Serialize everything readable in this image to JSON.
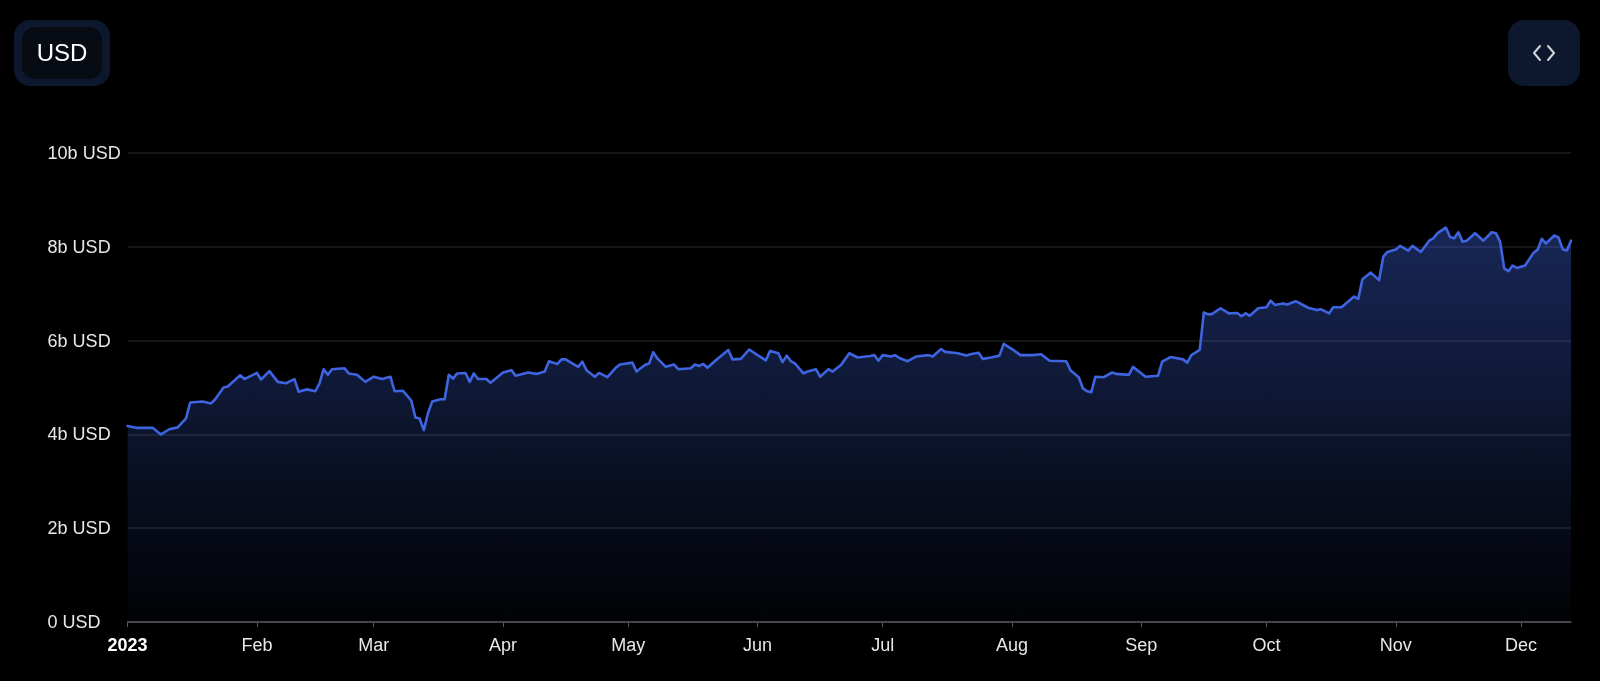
{
  "chart_data": {
    "type": "area",
    "annotations": [
      "USD"
    ],
    "color": "#3e64e0",
    "grid": "y",
    "xlim": [
      "2023-01-01",
      "2023-12-13"
    ],
    "xticks": [
      {
        "value": "2023-01-01",
        "label": "2023"
      },
      {
        "value": "2023-02-01",
        "label": "Feb"
      },
      {
        "value": "2023-03-01",
        "label": "Mar"
      },
      {
        "value": "2023-04-01",
        "label": "Apr"
      },
      {
        "value": "2023-05-01",
        "label": "May"
      },
      {
        "value": "2023-06-01",
        "label": "Jun"
      },
      {
        "value": "2023-07-01",
        "label": "Jul"
      },
      {
        "value": "2023-08-01",
        "label": "Aug"
      },
      {
        "value": "2023-09-01",
        "label": "Sep"
      },
      {
        "value": "2023-10-01",
        "label": "Oct"
      },
      {
        "value": "2023-11-01",
        "label": "Nov"
      },
      {
        "value": "2023-12-01",
        "label": "Dec"
      }
    ],
    "ylim": [
      0,
      10
    ],
    "yticks": [
      {
        "value": 0,
        "label": "0 USD"
      },
      {
        "value": 2,
        "label": "2b USD"
      },
      {
        "value": 4,
        "label": "4b USD"
      },
      {
        "value": 6,
        "label": "6b USD"
      },
      {
        "value": 8,
        "label": "8b USD"
      },
      {
        "value": 10,
        "label": "10b USD"
      }
    ],
    "x": [
      "2023-01-01",
      "2023-01-03",
      "2023-01-07",
      "2023-01-09",
      "2023-01-11",
      "2023-01-13",
      "2023-01-15",
      "2023-01-16",
      "2023-01-19",
      "2023-01-21",
      "2023-01-22",
      "2023-01-24",
      "2023-01-25",
      "2023-01-28",
      "2023-01-29",
      "2023-02-01",
      "2023-02-02",
      "2023-02-04",
      "2023-02-06",
      "2023-02-08",
      "2023-02-10",
      "2023-02-11",
      "2023-02-13",
      "2023-02-15",
      "2023-02-16",
      "2023-02-17",
      "2023-02-18",
      "2023-02-19",
      "2023-02-22",
      "2023-02-23",
      "2023-02-25",
      "2023-02-27",
      "2023-03-01",
      "2023-03-03",
      "2023-03-05",
      "2023-03-06",
      "2023-03-08",
      "2023-03-10",
      "2023-03-11",
      "2023-03-12",
      "2023-03-13",
      "2023-03-14",
      "2023-03-15",
      "2023-03-17",
      "2023-03-18",
      "2023-03-19",
      "2023-03-20",
      "2023-03-21",
      "2023-03-23",
      "2023-03-24",
      "2023-03-25",
      "2023-03-26",
      "2023-03-28",
      "2023-03-29",
      "2023-04-01",
      "2023-04-03",
      "2023-04-04",
      "2023-04-07",
      "2023-04-09",
      "2023-04-11",
      "2023-04-12",
      "2023-04-14",
      "2023-04-15",
      "2023-04-16",
      "2023-04-19",
      "2023-04-20",
      "2023-04-21",
      "2023-04-23",
      "2023-04-24",
      "2023-04-26",
      "2023-04-28",
      "2023-04-29",
      "2023-05-02",
      "2023-05-03",
      "2023-05-05",
      "2023-05-06",
      "2023-05-07",
      "2023-05-08",
      "2023-05-10",
      "2023-05-12",
      "2023-05-13",
      "2023-05-16",
      "2023-05-17",
      "2023-05-18",
      "2023-05-19",
      "2023-05-20",
      "2023-05-22",
      "2023-05-25",
      "2023-05-26",
      "2023-05-28",
      "2023-05-30",
      "2023-06-01",
      "2023-06-03",
      "2023-06-04",
      "2023-06-06",
      "2023-06-07",
      "2023-06-08",
      "2023-06-09",
      "2023-06-10",
      "2023-06-12",
      "2023-06-13",
      "2023-06-15",
      "2023-06-16",
      "2023-06-18",
      "2023-06-19",
      "2023-06-21",
      "2023-06-23",
      "2023-06-25",
      "2023-06-28",
      "2023-06-29",
      "2023-06-30",
      "2023-07-01",
      "2023-07-03",
      "2023-07-04",
      "2023-07-05",
      "2023-07-07",
      "2023-07-09",
      "2023-07-12",
      "2023-07-13",
      "2023-07-15",
      "2023-07-16",
      "2023-07-19",
      "2023-07-21",
      "2023-07-22",
      "2023-07-24",
      "2023-07-25",
      "2023-07-27",
      "2023-07-29",
      "2023-07-30",
      "2023-08-01",
      "2023-08-03",
      "2023-08-06",
      "2023-08-08",
      "2023-08-10",
      "2023-08-14",
      "2023-08-15",
      "2023-08-17",
      "2023-08-18",
      "2023-08-19",
      "2023-08-20",
      "2023-08-21",
      "2023-08-23",
      "2023-08-25",
      "2023-08-26",
      "2023-08-29",
      "2023-08-30",
      "2023-09-02",
      "2023-09-05",
      "2023-09-06",
      "2023-09-08",
      "2023-09-11",
      "2023-09-12",
      "2023-09-13",
      "2023-09-15",
      "2023-09-16",
      "2023-09-17",
      "2023-09-18",
      "2023-09-20",
      "2023-09-22",
      "2023-09-24",
      "2023-09-25",
      "2023-09-26",
      "2023-09-27",
      "2023-09-29",
      "2023-10-01",
      "2023-10-02",
      "2023-10-03",
      "2023-10-05",
      "2023-10-06",
      "2023-10-08",
      "2023-10-11",
      "2023-10-13",
      "2023-10-14",
      "2023-10-16",
      "2023-10-17",
      "2023-10-19",
      "2023-10-22",
      "2023-10-23",
      "2023-10-24",
      "2023-10-26",
      "2023-10-28",
      "2023-10-29",
      "2023-10-30",
      "2023-11-01",
      "2023-11-02",
      "2023-11-04",
      "2023-11-05",
      "2023-11-07",
      "2023-11-09",
      "2023-11-10",
      "2023-11-11",
      "2023-11-13",
      "2023-11-14",
      "2023-11-15",
      "2023-11-16",
      "2023-11-17",
      "2023-11-18",
      "2023-11-20",
      "2023-11-22",
      "2023-11-24",
      "2023-11-25",
      "2023-11-26",
      "2023-11-27",
      "2023-11-28",
      "2023-11-29",
      "2023-11-30",
      "2023-12-02",
      "2023-12-04",
      "2023-12-05",
      "2023-12-06",
      "2023-12-07",
      "2023-12-09",
      "2023-12-10",
      "2023-12-11",
      "2023-12-12",
      "2023-12-13"
    ],
    "values": [
      4.18,
      4.14,
      4.14,
      4.0,
      4.11,
      4.15,
      4.34,
      4.68,
      4.7,
      4.66,
      4.75,
      5.0,
      5.02,
      5.26,
      5.18,
      5.31,
      5.17,
      5.35,
      5.12,
      5.09,
      5.18,
      4.91,
      4.96,
      4.92,
      5.09,
      5.39,
      5.27,
      5.39,
      5.41,
      5.3,
      5.27,
      5.12,
      5.23,
      5.18,
      5.23,
      4.92,
      4.93,
      4.72,
      4.36,
      4.34,
      4.09,
      4.45,
      4.7,
      4.75,
      4.75,
      5.27,
      5.19,
      5.3,
      5.31,
      5.12,
      5.3,
      5.18,
      5.18,
      5.1,
      5.32,
      5.37,
      5.25,
      5.32,
      5.29,
      5.34,
      5.56,
      5.5,
      5.6,
      5.6,
      5.44,
      5.55,
      5.37,
      5.23,
      5.31,
      5.22,
      5.42,
      5.49,
      5.53,
      5.34,
      5.48,
      5.51,
      5.75,
      5.62,
      5.44,
      5.49,
      5.39,
      5.41,
      5.49,
      5.46,
      5.5,
      5.42,
      5.58,
      5.8,
      5.6,
      5.61,
      5.81,
      5.69,
      5.58,
      5.78,
      5.73,
      5.54,
      5.68,
      5.56,
      5.51,
      5.3,
      5.34,
      5.39,
      5.23,
      5.39,
      5.34,
      5.48,
      5.73,
      5.64,
      5.67,
      5.69,
      5.57,
      5.69,
      5.66,
      5.69,
      5.63,
      5.56,
      5.66,
      5.69,
      5.66,
      5.82,
      5.76,
      5.73,
      5.68,
      5.71,
      5.74,
      5.61,
      5.64,
      5.68,
      5.93,
      5.82,
      5.69,
      5.69,
      5.71,
      5.57,
      5.56,
      5.37,
      5.22,
      4.98,
      4.92,
      4.9,
      5.23,
      5.22,
      5.32,
      5.29,
      5.27,
      5.44,
      5.23,
      5.25,
      5.55,
      5.65,
      5.6,
      5.53,
      5.69,
      5.8,
      6.6,
      6.56,
      6.57,
      6.69,
      6.58,
      6.59,
      6.52,
      6.58,
      6.53,
      6.69,
      6.71,
      6.85,
      6.76,
      6.79,
      6.77,
      6.84,
      6.7,
      6.65,
      6.67,
      6.58,
      6.71,
      6.71,
      6.94,
      6.89,
      7.31,
      7.45,
      7.29,
      7.79,
      7.89,
      7.94,
      8.02,
      7.92,
      8.02,
      7.89,
      8.13,
      8.18,
      8.29,
      8.41,
      8.21,
      8.18,
      8.31,
      8.11,
      8.13,
      8.29,
      8.13,
      8.31,
      8.29,
      8.11,
      7.54,
      7.48,
      7.6,
      7.55,
      7.6,
      7.87,
      7.94,
      8.17,
      8.07,
      8.24,
      8.2,
      7.95,
      7.92,
      8.13
    ]
  }
}
